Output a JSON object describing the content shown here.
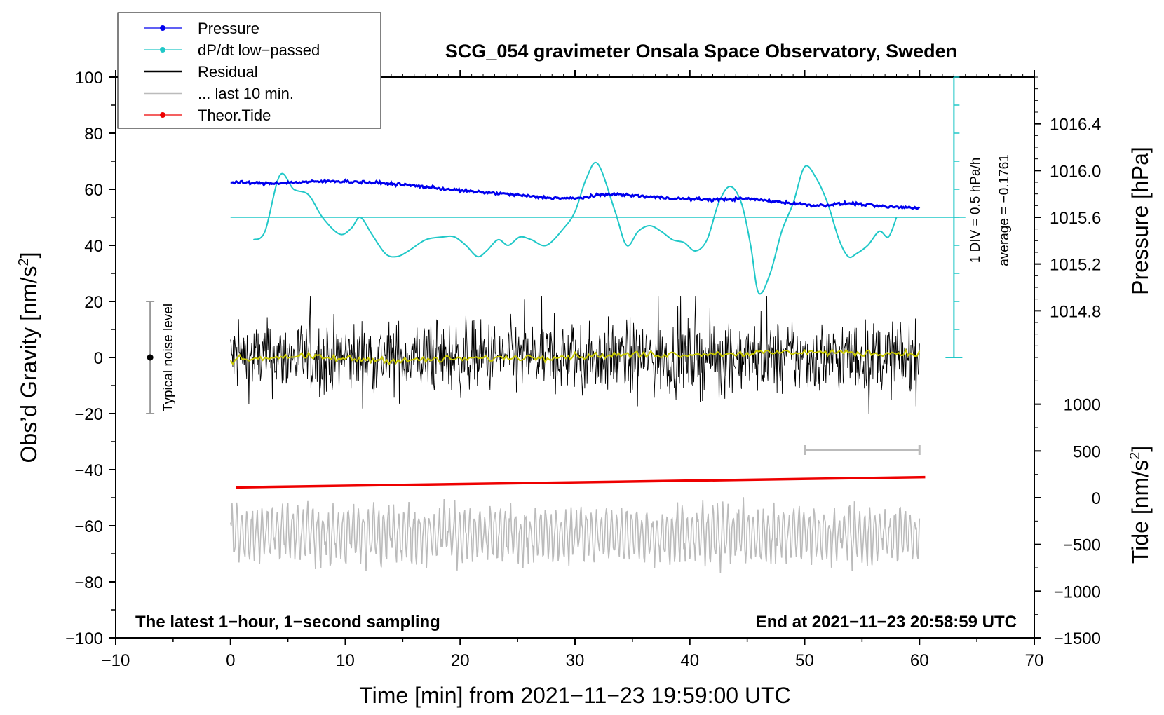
{
  "chart_data": {
    "type": "line",
    "title": "SCG_054 gravimeter Onsala Space Observatory, Sweden",
    "xlabel": "Time [min] from 2021−11−23 19:59:00 UTC",
    "ylabel_left": "Obs’d Gravity [nm/s",
    "ylabel_left_sup": "2",
    "ylabel_left_end": "]",
    "ylabel_right_pressure": "Pressure [hPa]",
    "ylabel_right_tide": "Tide [nm/s",
    "ylabel_right_tide_sup": "2",
    "ylabel_right_tide_end": "]",
    "xlim": [
      -10,
      70
    ],
    "ylim": [
      -100,
      100
    ],
    "x_ticks": [
      "−10",
      "0",
      "10",
      "20",
      "30",
      "40",
      "50",
      "60",
      "70"
    ],
    "y_ticks": [
      "100",
      "80",
      "60",
      "40",
      "20",
      "0",
      "−20",
      "−40",
      "−60",
      "−80",
      "−100"
    ],
    "pressure_axis": {
      "range": [
        1014.4,
        1016.8
      ],
      "ticks": [
        "1016.4",
        "1016.0",
        "1015.6",
        "1015.2",
        "1014.8"
      ]
    },
    "tide_axis": {
      "range": [
        -1500,
        1500
      ],
      "ticks": [
        "1000",
        "500",
        "0",
        "−500",
        "−1000",
        "−1500"
      ]
    },
    "legend": [
      {
        "label": "Pressure",
        "color": "#0000ee"
      },
      {
        "label": "dP/dt low−passed",
        "color": "#20c8c8"
      },
      {
        "label": "Residual",
        "color": "#000000"
      },
      {
        "label": "... last 10 min.",
        "color": "#bbbbbb"
      },
      {
        "label": "Theor.Tide",
        "color": "#ee0000"
      }
    ],
    "annotations": {
      "left_bottom": "The latest 1−hour, 1−second sampling",
      "right_bottom": "End at 2021−11−23 20:58:59 UTC",
      "noise": "Typical noise level",
      "div": "1 DIV = 0.5 hPa/h",
      "average": "average = −0.1761"
    },
    "noise_bar": {
      "x": -7,
      "y": 0,
      "half_range": 20
    },
    "last10_bar": {
      "x_start": 50,
      "x_end": 60,
      "y": -33
    },
    "series": [
      {
        "name": "Pressure",
        "axis": "pressure",
        "x": [
          0,
          3,
          6,
          9,
          12,
          15,
          18,
          21,
          24,
          27,
          30,
          33,
          36,
          39,
          42,
          45,
          48,
          51,
          54,
          57,
          60
        ],
        "values": [
          1015.9,
          1015.89,
          1015.9,
          1015.91,
          1015.9,
          1015.88,
          1015.85,
          1015.82,
          1015.8,
          1015.77,
          1015.76,
          1015.8,
          1015.78,
          1015.76,
          1015.75,
          1015.76,
          1015.73,
          1015.7,
          1015.72,
          1015.69,
          1015.68
        ]
      },
      {
        "name": "dP/dt low−passed",
        "axis": "gravity",
        "x": [
          2,
          3,
          4.3,
          5.5,
          6.8,
          8,
          9.5,
          10.5,
          11.3,
          12.3,
          13.5,
          14.5,
          15.5,
          17,
          18.5,
          19.5,
          20.5,
          21.5,
          22.3,
          23.3,
          24.2,
          25.2,
          26.2,
          27.5,
          29,
          30,
          31,
          32,
          33.5,
          34.5,
          35.5,
          36.5,
          37.5,
          38.5,
          39.5,
          40.5,
          41.5,
          42.5,
          43.5,
          44.5,
          45.3,
          46,
          47,
          48,
          49,
          50,
          51,
          52,
          53,
          53.8,
          54.5,
          55.5,
          56.5,
          57.3,
          58
        ],
        "values": [
          42,
          45,
          65,
          60,
          58,
          50,
          44,
          46,
          50,
          44,
          37,
          36,
          38,
          42,
          43,
          43,
          40,
          36,
          38,
          42,
          40,
          43,
          42,
          40,
          46,
          52,
          64,
          69,
          52,
          40,
          45,
          47,
          45,
          42,
          41,
          38,
          42,
          55,
          61,
          55,
          40,
          23,
          30,
          45,
          55,
          68,
          64,
          55,
          42,
          36,
          37,
          40,
          45,
          43,
          50
        ]
      },
      {
        "name": "Residual",
        "axis": "gravity",
        "x_range": [
          0,
          60
        ],
        "amplitude": 15
      },
      {
        "name": "Residual smooth",
        "axis": "gravity",
        "x": [
          0,
          5,
          10,
          15,
          20,
          25,
          30,
          35,
          40,
          45,
          50,
          55,
          60
        ],
        "values": [
          -1,
          0.5,
          -0.5,
          -1,
          -0.5,
          0,
          0.5,
          1,
          1.2,
          1.5,
          2,
          1.5,
          1.5
        ]
      },
      {
        "name": "... last 10 min.",
        "axis": "gravity",
        "x_range": [
          0,
          60
        ],
        "center": -63,
        "amplitude": 10
      },
      {
        "name": "Theor.Tide",
        "axis": "tide",
        "x": [
          0.5,
          60.5
        ],
        "values": [
          110,
          220
        ]
      }
    ]
  }
}
